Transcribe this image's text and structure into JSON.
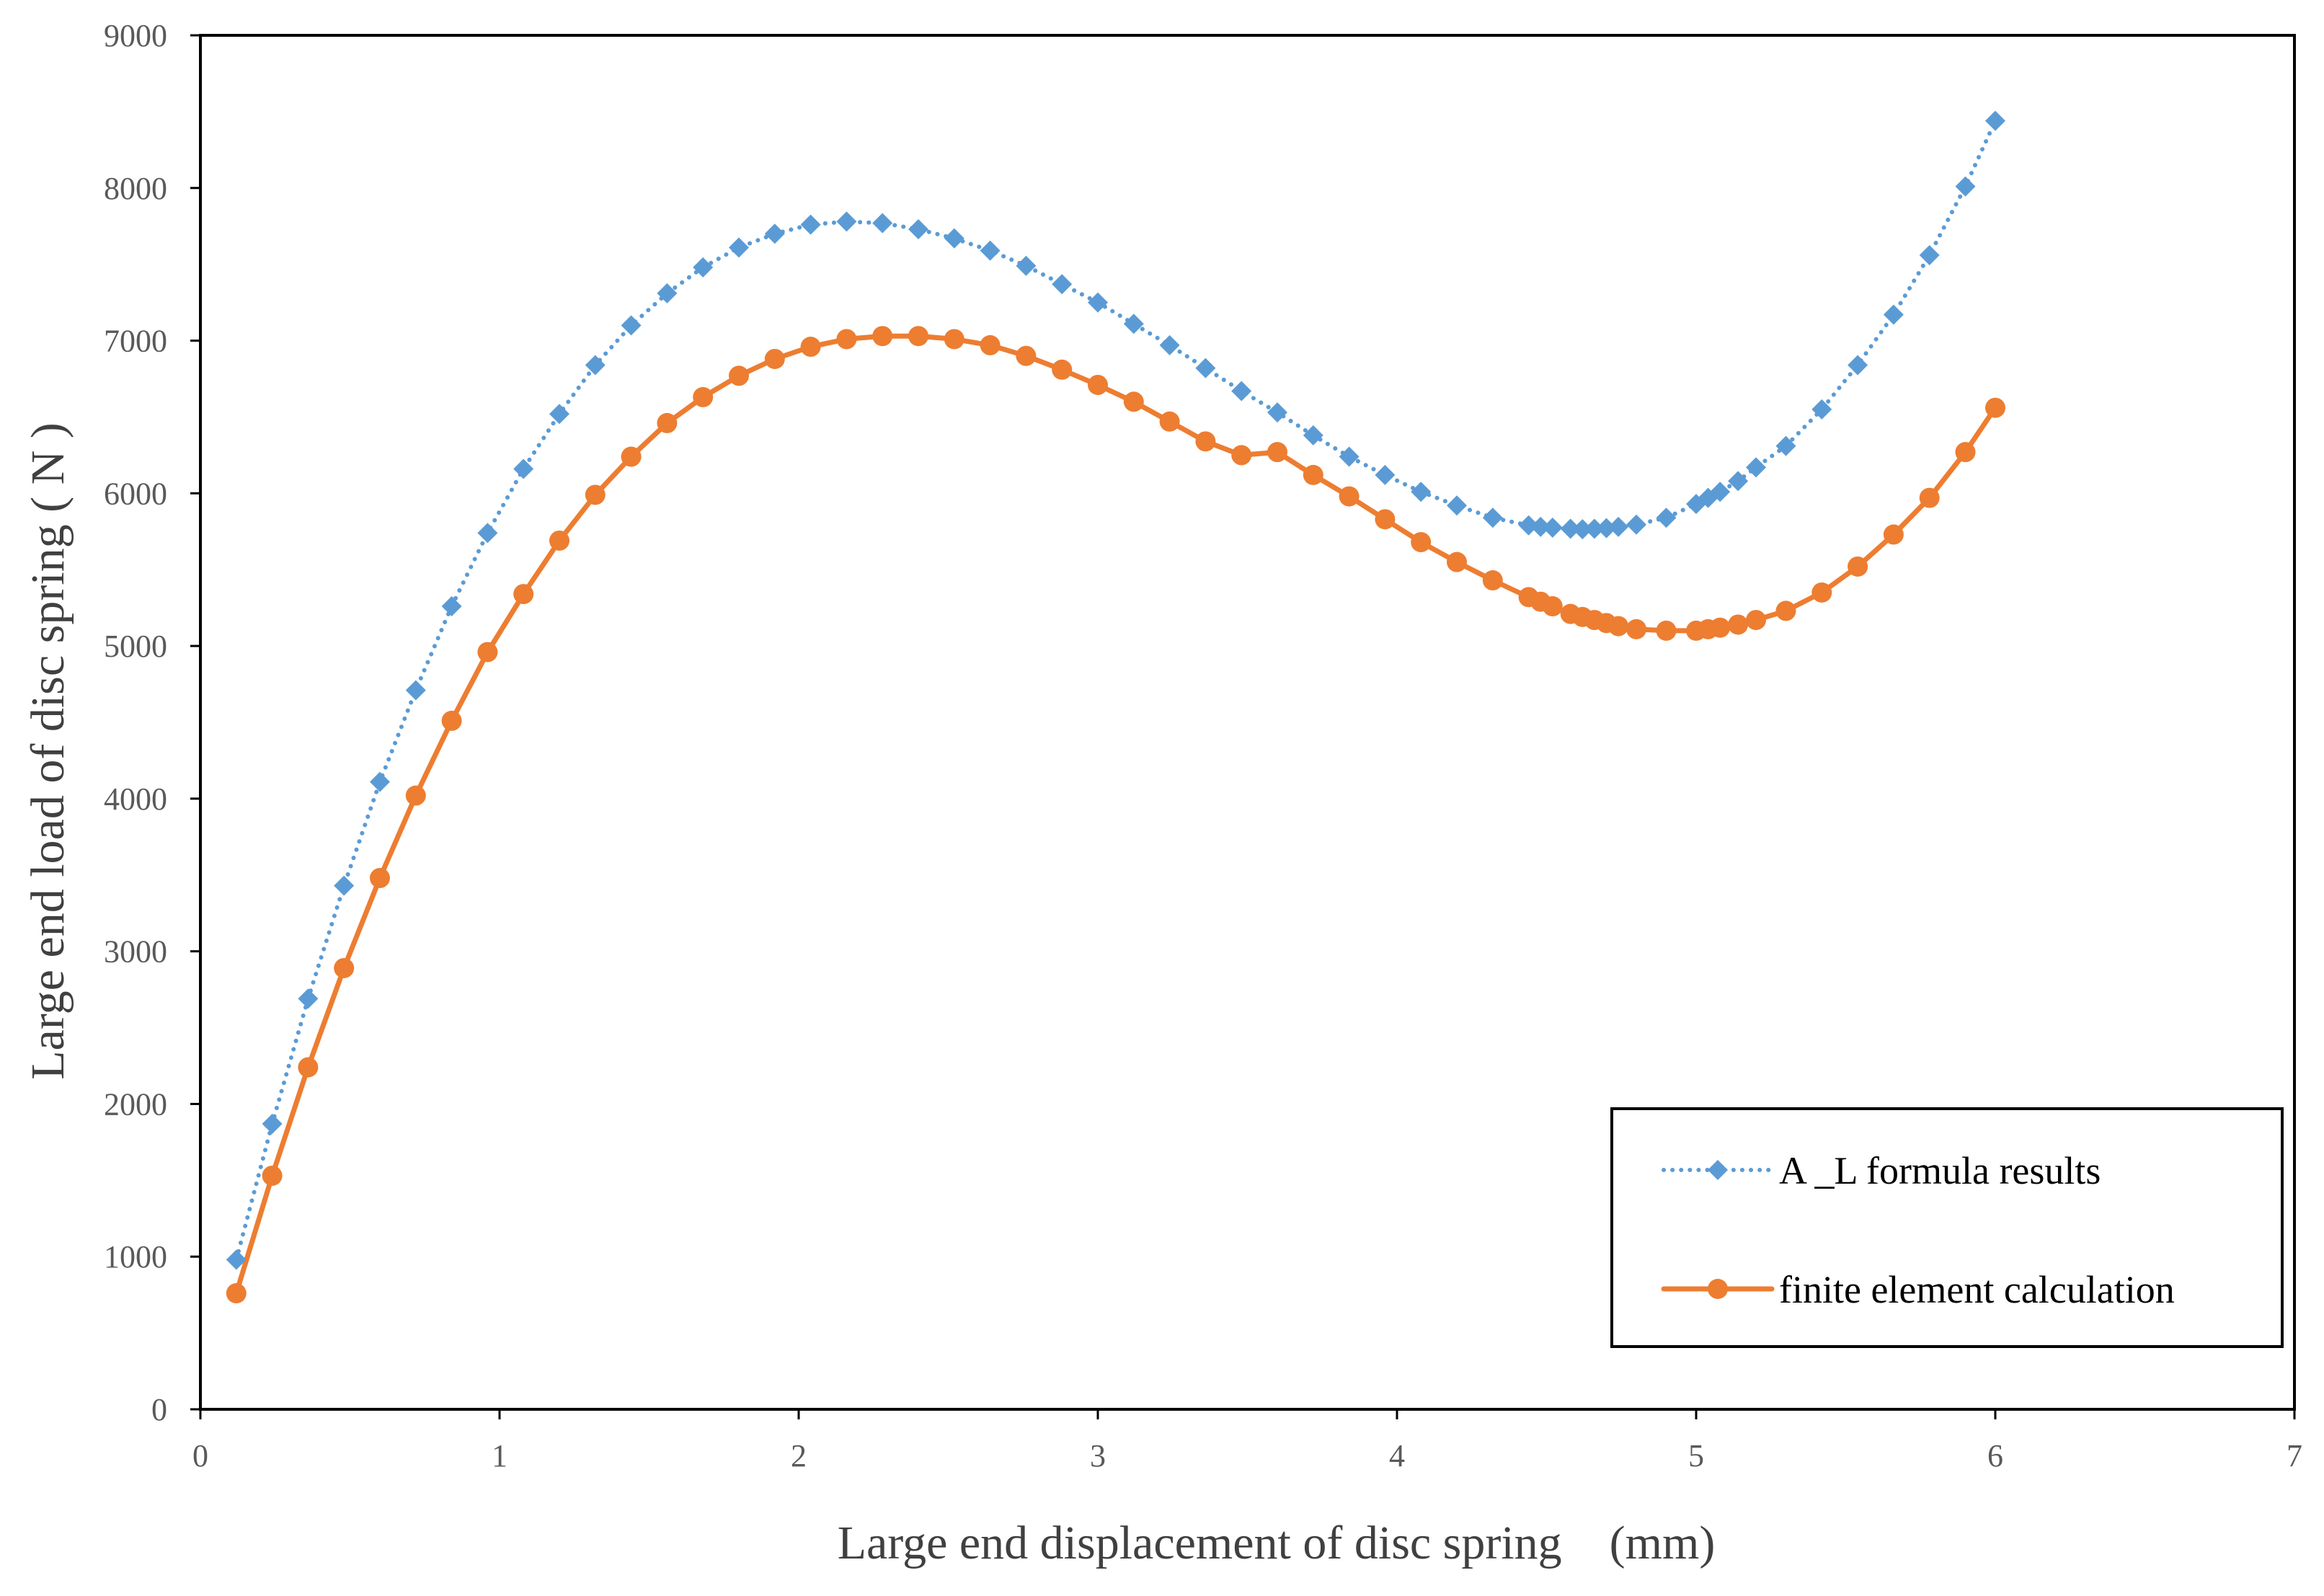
{
  "chart_data": {
    "type": "line",
    "title": "",
    "xlabel": "Large end displacement of disc spring　(mm)",
    "ylabel": "Large end load of disc spring ( N )",
    "xlim": [
      0,
      7
    ],
    "ylim": [
      0,
      9000
    ],
    "xticks": [
      0,
      1,
      2,
      3,
      4,
      5,
      6,
      7
    ],
    "yticks": [
      0,
      1000,
      2000,
      3000,
      4000,
      5000,
      6000,
      7000,
      8000,
      9000
    ],
    "grid": false,
    "legend_position": "bottom-right",
    "series": [
      {
        "name": "A _L formula results",
        "color": "#5B9BD5",
        "line_style": "dotted",
        "marker": "diamond",
        "x": [
          0.12,
          0.24,
          0.36,
          0.48,
          0.6,
          0.72,
          0.84,
          0.96,
          1.08,
          1.2,
          1.32,
          1.44,
          1.56,
          1.68,
          1.8,
          1.92,
          2.04,
          2.16,
          2.28,
          2.4,
          2.52,
          2.64,
          2.76,
          2.88,
          3.0,
          3.12,
          3.24,
          3.36,
          3.48,
          3.6,
          3.72,
          3.84,
          3.96,
          4.08,
          4.2,
          4.32,
          4.44,
          4.48,
          4.52,
          4.58,
          4.62,
          4.66,
          4.7,
          4.74,
          4.8,
          4.9,
          5.0,
          5.04,
          5.08,
          5.14,
          5.2,
          5.3,
          5.42,
          5.54,
          5.66,
          5.78,
          5.9,
          6.0
        ],
        "y": [
          980,
          1870,
          2690,
          3430,
          4110,
          4710,
          5260,
          5740,
          6160,
          6520,
          6840,
          7100,
          7310,
          7480,
          7610,
          7700,
          7760,
          7780,
          7770,
          7730,
          7670,
          7590,
          7490,
          7370,
          7250,
          7110,
          6970,
          6820,
          6670,
          6530,
          6380,
          6240,
          6120,
          6010,
          5920,
          5840,
          5790,
          5780,
          5775,
          5768,
          5765,
          5768,
          5772,
          5780,
          5795,
          5840,
          5930,
          5970,
          6010,
          6080,
          6170,
          6310,
          6550,
          6840,
          7170,
          7560,
          8010,
          8440
        ]
      },
      {
        "name": "finite element calculation",
        "color": "#ED7D31",
        "line_style": "solid",
        "marker": "circle",
        "x": [
          0.12,
          0.24,
          0.36,
          0.48,
          0.6,
          0.72,
          0.84,
          0.96,
          1.08,
          1.2,
          1.32,
          1.44,
          1.56,
          1.68,
          1.8,
          1.92,
          2.04,
          2.16,
          2.28,
          2.4,
          2.52,
          2.64,
          2.76,
          2.88,
          3.0,
          3.12,
          3.24,
          3.36,
          3.48,
          3.6,
          3.72,
          3.84,
          3.96,
          4.08,
          4.2,
          4.32,
          4.44,
          4.48,
          4.52,
          4.58,
          4.62,
          4.66,
          4.7,
          4.74,
          4.8,
          4.9,
          5.0,
          5.04,
          5.08,
          5.14,
          5.2,
          5.3,
          5.42,
          5.54,
          5.66,
          5.78,
          5.9,
          6.0
        ],
        "y": [
          760,
          1530,
          2240,
          2890,
          3480,
          4020,
          4510,
          4960,
          5340,
          5690,
          5990,
          6240,
          6460,
          6630,
          6770,
          6880,
          6960,
          7010,
          7030,
          7030,
          7010,
          6970,
          6900,
          6810,
          6710,
          6600,
          6470,
          6340,
          6250,
          6270,
          6120,
          5980,
          5830,
          5680,
          5550,
          5430,
          5320,
          5290,
          5260,
          5210,
          5190,
          5170,
          5150,
          5130,
          5110,
          5100,
          5100,
          5110,
          5120,
          5140,
          5170,
          5230,
          5350,
          5520,
          5730,
          5970,
          6270,
          6560
        ]
      }
    ]
  }
}
